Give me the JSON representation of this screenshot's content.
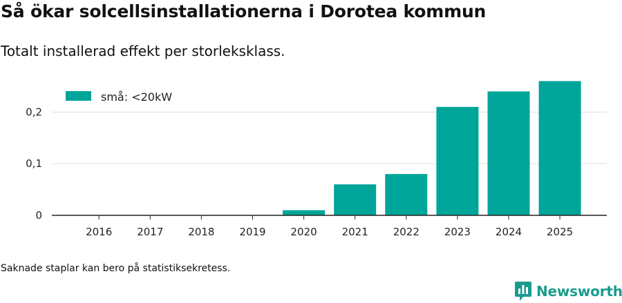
{
  "title": "Så ökar solcellsinstallationerna i Dorotea kommun",
  "subtitle": "Totalt installerad effekt per storleksklass.",
  "footnote": "Saknade staplar kan bero på statistiksekretess.",
  "brand": {
    "name": "Newsworthy",
    "icon": "bar-chart-logo-icon"
  },
  "colors": {
    "bar": "#00a59a",
    "grid": "#dddddd",
    "axis": "#222222",
    "brand": "#1b9b8e"
  },
  "chart_data": {
    "type": "bar",
    "title": "Så ökar solcellsinstallationerna i Dorotea kommun",
    "subtitle": "Totalt installerad effekt per storleksklass.",
    "xlabel": "",
    "ylabel": "",
    "categories": [
      "2016",
      "2017",
      "2018",
      "2019",
      "2020",
      "2021",
      "2022",
      "2023",
      "2024",
      "2025"
    ],
    "series": [
      {
        "name": "små: <20kW",
        "values": [
          0,
          0,
          0,
          0,
          0.01,
          0.06,
          0.08,
          0.21,
          0.24,
          0.26
        ]
      }
    ],
    "ylim": [
      0,
      0.27
    ],
    "yticks": [
      0,
      0.1,
      0.2
    ],
    "ytick_labels": [
      "0",
      "0,1",
      "0,2"
    ],
    "grid": true,
    "legend": "top-left"
  }
}
